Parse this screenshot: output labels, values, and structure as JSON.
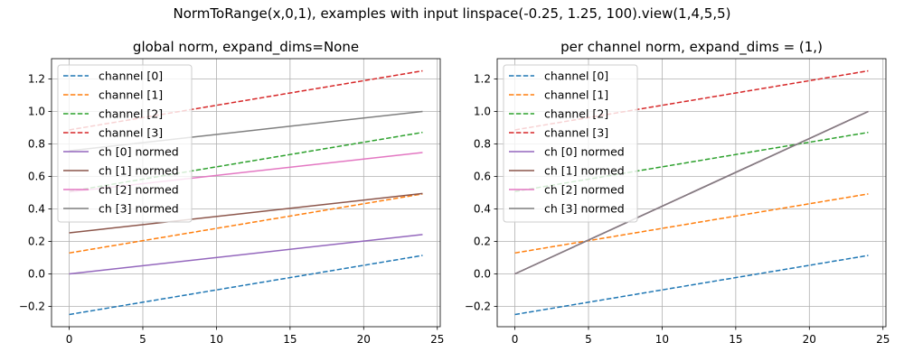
{
  "figure_title": "NormToRange(x,0,1), examples with input linspace(-0.25, 1.25, 100).view(1,4,5,5)",
  "chart_data": [
    {
      "type": "line",
      "title": "global norm, expand_dims=None",
      "xlabel": "",
      "ylabel": "",
      "xlim": [
        -1.2,
        25.2
      ],
      "ylim": [
        -0.325,
        1.325
      ],
      "xticks": [
        0,
        5,
        10,
        15,
        20,
        25
      ],
      "yticks": [
        -0.2,
        0.0,
        0.2,
        0.4,
        0.6,
        0.8,
        1.0,
        1.2
      ],
      "xtick_labels": [
        "0",
        "5",
        "10",
        "15",
        "20",
        "25"
      ],
      "ytick_labels": [
        "−0.2",
        "0.0",
        "0.2",
        "0.4",
        "0.6",
        "0.8",
        "1.0",
        "1.2"
      ],
      "grid": true,
      "legend_position": "upper-left",
      "x_range": [
        0,
        24
      ],
      "series": [
        {
          "name": "channel [0]",
          "color": "#1f77b4",
          "dashed": true,
          "start": -0.25,
          "end": 0.1136
        },
        {
          "name": "channel [1]",
          "color": "#ff7f0e",
          "dashed": true,
          "start": 0.1288,
          "end": 0.4924
        },
        {
          "name": "channel [2]",
          "color": "#2ca02c",
          "dashed": true,
          "start": 0.5076,
          "end": 0.8712
        },
        {
          "name": "channel [3]",
          "color": "#d62728",
          "dashed": true,
          "start": 0.8864,
          "end": 1.25
        },
        {
          "name": "ch [0] normed",
          "color": "#9467bd",
          "dashed": false,
          "start": 0.0,
          "end": 0.2424
        },
        {
          "name": "ch [1] normed",
          "color": "#8c564b",
          "dashed": false,
          "start": 0.2525,
          "end": 0.4949
        },
        {
          "name": "ch [2] normed",
          "color": "#e377c2",
          "dashed": false,
          "start": 0.5051,
          "end": 0.7475
        },
        {
          "name": "ch [3] normed",
          "color": "#7f7f7f",
          "dashed": false,
          "start": 0.7576,
          "end": 1.0
        }
      ]
    },
    {
      "type": "line",
      "title": "per channel norm, expand_dims = (1,)",
      "xlabel": "",
      "ylabel": "",
      "xlim": [
        -1.2,
        25.2
      ],
      "ylim": [
        -0.325,
        1.325
      ],
      "xticks": [
        0,
        5,
        10,
        15,
        20,
        25
      ],
      "yticks": [
        -0.2,
        0.0,
        0.2,
        0.4,
        0.6,
        0.8,
        1.0,
        1.2
      ],
      "xtick_labels": [
        "0",
        "5",
        "10",
        "15",
        "20",
        "25"
      ],
      "ytick_labels": [
        "−0.2",
        "0.0",
        "0.2",
        "0.4",
        "0.6",
        "0.8",
        "1.0",
        "1.2"
      ],
      "grid": true,
      "legend_position": "upper-left",
      "x_range": [
        0,
        24
      ],
      "series": [
        {
          "name": "channel [0]",
          "color": "#1f77b4",
          "dashed": true,
          "start": -0.25,
          "end": 0.1136
        },
        {
          "name": "channel [1]",
          "color": "#ff7f0e",
          "dashed": true,
          "start": 0.1288,
          "end": 0.4924
        },
        {
          "name": "channel [2]",
          "color": "#2ca02c",
          "dashed": true,
          "start": 0.5076,
          "end": 0.8712
        },
        {
          "name": "channel [3]",
          "color": "#d62728",
          "dashed": true,
          "start": 0.8864,
          "end": 1.25
        },
        {
          "name": "ch [0] normed",
          "color": "#9467bd",
          "dashed": false,
          "start": 0.0,
          "end": 1.0
        },
        {
          "name": "ch [1] normed",
          "color": "#8c564b",
          "dashed": false,
          "start": 0.0,
          "end": 1.0
        },
        {
          "name": "ch [2] normed",
          "color": "#e377c2",
          "dashed": false,
          "start": 0.0,
          "end": 1.0
        },
        {
          "name": "ch [3] normed",
          "color": "#7f7f7f",
          "dashed": false,
          "start": 0.0,
          "end": 1.0
        }
      ]
    }
  ]
}
